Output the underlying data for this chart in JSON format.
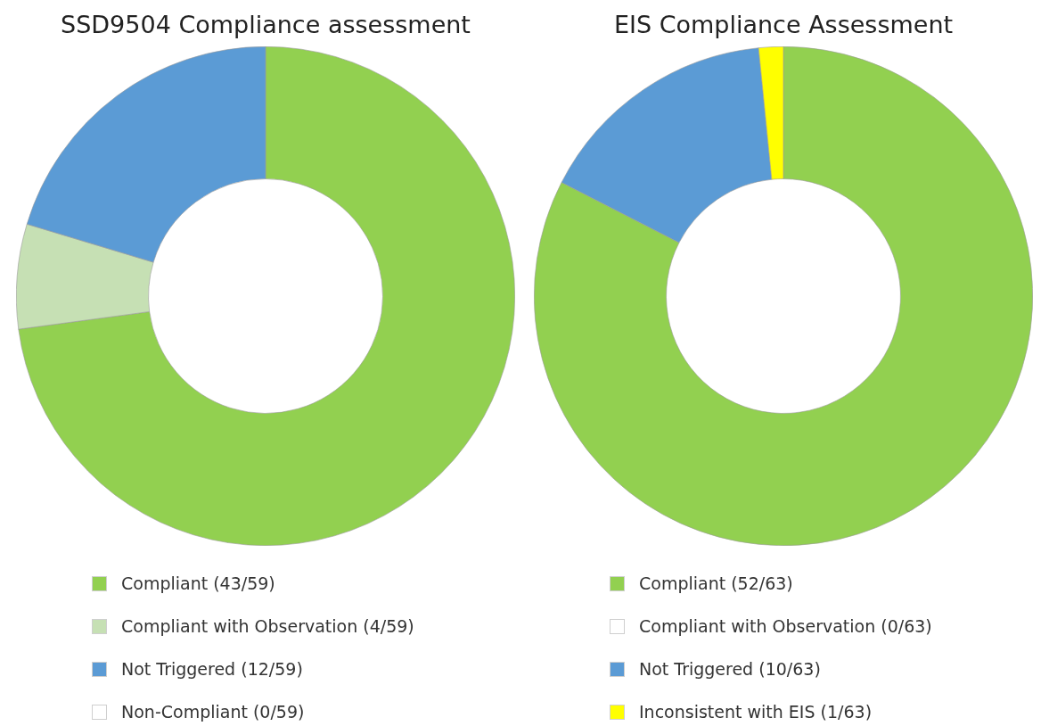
{
  "chart_data": [
    {
      "type": "donut",
      "title": "SSD9504 Compliance assessment",
      "categories": [
        "Compliant (43/59)",
        "Compliant with Observation (4/59)",
        "Not Triggered (12/59)",
        "Non-Compliant (0/59)"
      ],
      "values": [
        43,
        4,
        12,
        0
      ],
      "colors": [
        "#92d050",
        "#c6e0b4",
        "#5b9bd5",
        "#ffffff"
      ],
      "legend": "bottom"
    },
    {
      "type": "donut",
      "title": "EIS Compliance Assessment",
      "categories": [
        "Compliant (52/63)",
        "Compliant with Observation (0/63)",
        "Not Triggered (10/63)",
        "Inconsistent with EIS (1/63)"
      ],
      "values": [
        52,
        0,
        10,
        1
      ],
      "colors": [
        "#92d050",
        "#ffffff",
        "#5b9bd5",
        "#ffff00"
      ],
      "legend": "bottom"
    }
  ]
}
